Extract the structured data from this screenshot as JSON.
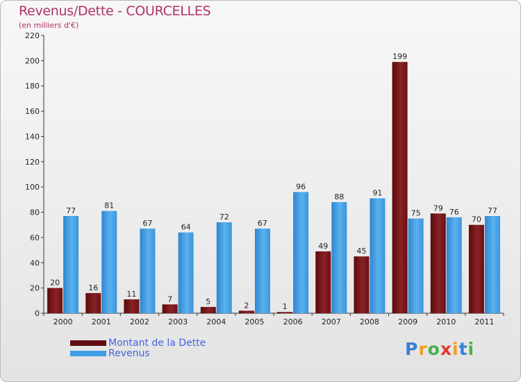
{
  "header": {
    "title": "Revenus/Dette - COURCELLES",
    "subtitle": "(en milliers d'€)"
  },
  "legend": {
    "debt_label": "Montant de la Dette",
    "revenue_label": "Revenus"
  },
  "brand": {
    "logo_text": "Proxiti",
    "logo_letters": [
      {
        "ch": "P",
        "color": "#3a7fd4"
      },
      {
        "ch": "r",
        "color": "#f0a020"
      },
      {
        "ch": "o",
        "color": "#4caf50"
      },
      {
        "ch": "x",
        "color": "#e23a2f"
      },
      {
        "ch": "i",
        "color": "#f0a020"
      },
      {
        "ch": "t",
        "color": "#3a7fd4"
      },
      {
        "ch": "i",
        "color": "#4caf50"
      }
    ]
  },
  "colors": {
    "debt": "#7a1518",
    "revenue": "#3e9ee3",
    "title": "#b0306a"
  },
  "chart_data": {
    "type": "bar",
    "title": "Revenus/Dette - COURCELLES",
    "ylabel": "(en milliers d'€)",
    "categories": [
      "2000",
      "2001",
      "2002",
      "2003",
      "2004",
      "2005",
      "2006",
      "2007",
      "2008",
      "2009",
      "2010",
      "2011"
    ],
    "series": [
      {
        "name": "Montant de la Dette",
        "values": [
          20,
          16,
          11,
          7,
          5,
          2,
          1,
          49,
          45,
          199,
          79,
          70
        ]
      },
      {
        "name": "Revenus",
        "values": [
          77,
          81,
          67,
          64,
          72,
          67,
          96,
          88,
          91,
          75,
          76,
          77
        ]
      }
    ],
    "ylim": [
      0,
      220
    ],
    "yticks": [
      0,
      20,
      40,
      60,
      80,
      100,
      120,
      140,
      160,
      180,
      200,
      220
    ],
    "grid": false,
    "legend_position": "bottom-left"
  }
}
